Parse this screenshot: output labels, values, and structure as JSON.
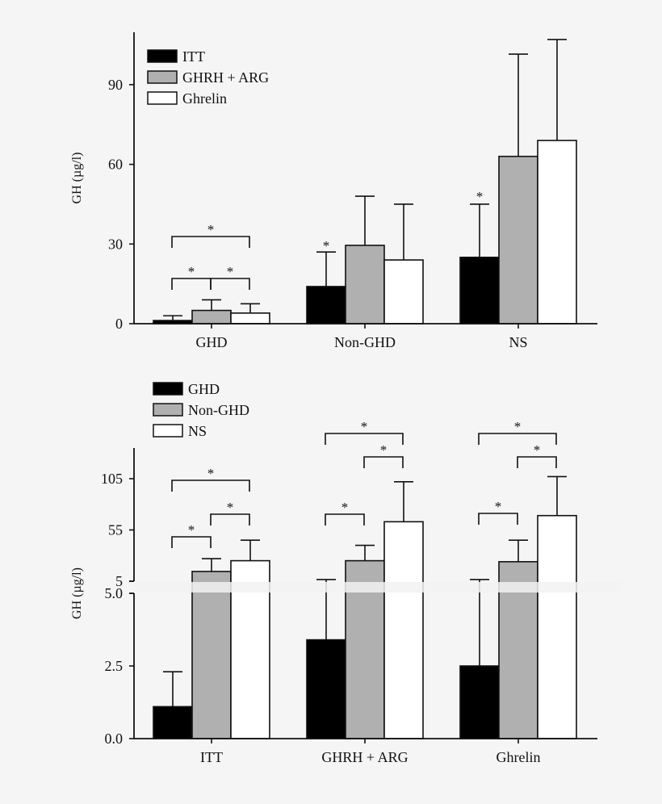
{
  "chart_data": [
    {
      "type": "bar",
      "ylabel": "GH (µg/l)",
      "categories": [
        "GHD",
        "Non-GHD",
        "NS"
      ],
      "series": [
        {
          "name": "ITT",
          "color": "#000000",
          "values": [
            1.2,
            14,
            25
          ],
          "error_upper": [
            3,
            27,
            45
          ]
        },
        {
          "name": "GHRH + ARG",
          "color": "#b0b0b0",
          "values": [
            5,
            29.5,
            63
          ],
          "error_upper": [
            9,
            48,
            101.5
          ]
        },
        {
          "name": "Ghrelin",
          "color": "#ffffff",
          "values": [
            4,
            24,
            69
          ],
          "error_upper": [
            7.5,
            45,
            107
          ]
        }
      ],
      "yticks": [
        "0",
        "30",
        "60",
        "90"
      ],
      "ytick_values": [
        0,
        30,
        60,
        90
      ],
      "ylim": [
        0,
        110
      ],
      "legend": "top-left",
      "significance": [
        {
          "category": "GHD",
          "between": [
            "ITT",
            "Ghrelin"
          ],
          "label": "*"
        },
        {
          "category": "GHD",
          "between": [
            "ITT",
            "GHRH + ARG"
          ],
          "label": "*"
        },
        {
          "category": "GHD",
          "between": [
            "GHRH + ARG",
            "Ghrelin"
          ],
          "label": "*"
        },
        {
          "category": "Non-GHD",
          "series": "ITT",
          "label": "*"
        },
        {
          "category": "NS",
          "series": "ITT",
          "label": "*"
        }
      ]
    },
    {
      "type": "bar",
      "ylabel": "GH (µg/l)",
      "categories": [
        "ITT",
        "GHRH + ARG",
        "Ghrelin"
      ],
      "series": [
        {
          "name": "GHD",
          "color": "#000000",
          "values": [
            1.1,
            3.4,
            2.5
          ],
          "error_upper": [
            2.3,
            6.6,
            6.6
          ]
        },
        {
          "name": "Non-GHD",
          "color": "#b0b0b0",
          "values": [
            14.5,
            25,
            24
          ],
          "error_upper": [
            27,
            40,
            45
          ]
        },
        {
          "name": "NS",
          "color": "#ffffff",
          "values": [
            25,
            63,
            69
          ],
          "error_upper": [
            45,
            102,
            107
          ]
        }
      ],
      "axis_break": [
        5.0,
        5
      ],
      "yticks_lower": [
        "0.0",
        "2.5",
        "5.0"
      ],
      "ytick_values_lower": [
        0,
        2.5,
        5.0
      ],
      "yticks_upper": [
        "5",
        "55",
        "105"
      ],
      "ytick_values_upper": [
        5,
        55,
        105
      ],
      "legend": "top-left",
      "significance": [
        {
          "category": "ITT",
          "between": [
            "GHD",
            "NS"
          ],
          "label": "*"
        },
        {
          "category": "ITT",
          "between": [
            "GHD",
            "Non-GHD"
          ],
          "label": "*"
        },
        {
          "category": "ITT",
          "between": [
            "Non-GHD",
            "NS"
          ],
          "label": "*"
        },
        {
          "category": "GHRH + ARG",
          "between": [
            "GHD",
            "NS"
          ],
          "label": "*"
        },
        {
          "category": "GHRH + ARG",
          "between": [
            "Non-GHD",
            "NS"
          ],
          "label": "*"
        },
        {
          "category": "GHRH + ARG",
          "between": [
            "GHD",
            "Non-GHD"
          ],
          "label": "*"
        },
        {
          "category": "Ghrelin",
          "between": [
            "GHD",
            "NS"
          ],
          "label": "*"
        },
        {
          "category": "Ghrelin",
          "between": [
            "Non-GHD",
            "NS"
          ],
          "label": "*"
        },
        {
          "category": "Ghrelin",
          "between": [
            "GHD",
            "Non-GHD"
          ],
          "label": "*"
        }
      ]
    }
  ]
}
